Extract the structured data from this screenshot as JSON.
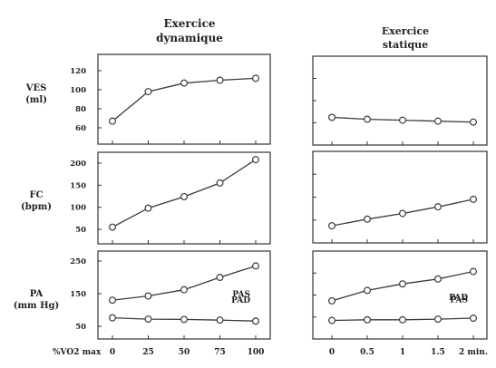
{
  "headers": {
    "dynamic": [
      "Exercice",
      "dynamique"
    ],
    "static": [
      "Exercice",
      "statique"
    ]
  },
  "row_labels": [
    [
      "VES",
      "(ml)"
    ],
    [
      "FC",
      "(bpm)"
    ],
    [
      "PA",
      "(mm Hg)"
    ]
  ],
  "x_axes": {
    "dynamic_label": "%VO2 max",
    "dynamic_ticks": [
      "0",
      "25",
      "50",
      "75",
      "100"
    ],
    "static_ticks": [
      "0",
      "0.5",
      "1",
      "1.5",
      "2 min."
    ]
  },
  "colors": {
    "line": "#3a3a3a",
    "marker_fill": "#ffffff",
    "panel_border": "#333333"
  },
  "chart_data": [
    {
      "type": "line",
      "title": "",
      "xlabel": "%VO2 max",
      "ylabel": "VES (ml)",
      "x": [
        0,
        25,
        50,
        75,
        100
      ],
      "xlim": [
        0,
        100
      ],
      "ylim": [
        60,
        120
      ],
      "yticks": [
        60,
        80,
        100,
        120
      ],
      "series": [
        {
          "name": "",
          "values": [
            67,
            98,
            107,
            110,
            112
          ]
        }
      ]
    },
    {
      "type": "line",
      "title": "",
      "xlabel": "",
      "ylabel": "VES (ml)",
      "x": [
        0,
        0.5,
        1,
        1.5,
        2
      ],
      "xlim": [
        0,
        2
      ],
      "ylim": [
        60,
        120
      ],
      "yticks": [],
      "series": [
        {
          "name": "",
          "values": [
            71,
            69,
            68,
            67,
            66
          ]
        }
      ]
    },
    {
      "type": "line",
      "title": "",
      "xlabel": "%VO2 max",
      "ylabel": "FC (bpm)",
      "x": [
        0,
        25,
        50,
        75,
        100
      ],
      "xlim": [
        0,
        100
      ],
      "ylim": [
        50,
        200
      ],
      "yticks": [
        50,
        100,
        150,
        200
      ],
      "series": [
        {
          "name": "",
          "values": [
            55,
            98,
            124,
            155,
            208
          ]
        }
      ]
    },
    {
      "type": "line",
      "title": "",
      "xlabel": "",
      "ylabel": "FC (bpm)",
      "x": [
        0,
        0.5,
        1,
        1.5,
        2
      ],
      "xlim": [
        0,
        2
      ],
      "ylim": [
        50,
        200
      ],
      "yticks": [],
      "series": [
        {
          "name": "",
          "values": [
            58,
            73,
            86,
            101,
            118
          ]
        }
      ]
    },
    {
      "type": "line",
      "title": "",
      "xlabel": "%VO2 max",
      "ylabel": "PA (mm Hg)",
      "x": [
        0,
        25,
        50,
        75,
        100
      ],
      "xlim": [
        0,
        100
      ],
      "ylim": [
        50,
        250
      ],
      "yticks": [
        50,
        150,
        250
      ],
      "series": [
        {
          "name": "PAS",
          "values": [
            130,
            143,
            162,
            200,
            235
          ]
        },
        {
          "name": "PAD",
          "values": [
            76,
            72,
            71,
            69,
            66
          ]
        }
      ]
    },
    {
      "type": "line",
      "title": "",
      "xlabel": "",
      "ylabel": "PA (mm Hg)",
      "x": [
        0,
        0.5,
        1,
        1.5,
        2
      ],
      "xlim": [
        0,
        2
      ],
      "ylim": [
        50,
        250
      ],
      "yticks": [],
      "series": [
        {
          "name": "PAS",
          "values": [
            128,
            160,
            180,
            195,
            218
          ]
        },
        {
          "name": "PAD",
          "values": [
            68,
            70,
            70,
            72,
            75
          ]
        }
      ]
    }
  ]
}
